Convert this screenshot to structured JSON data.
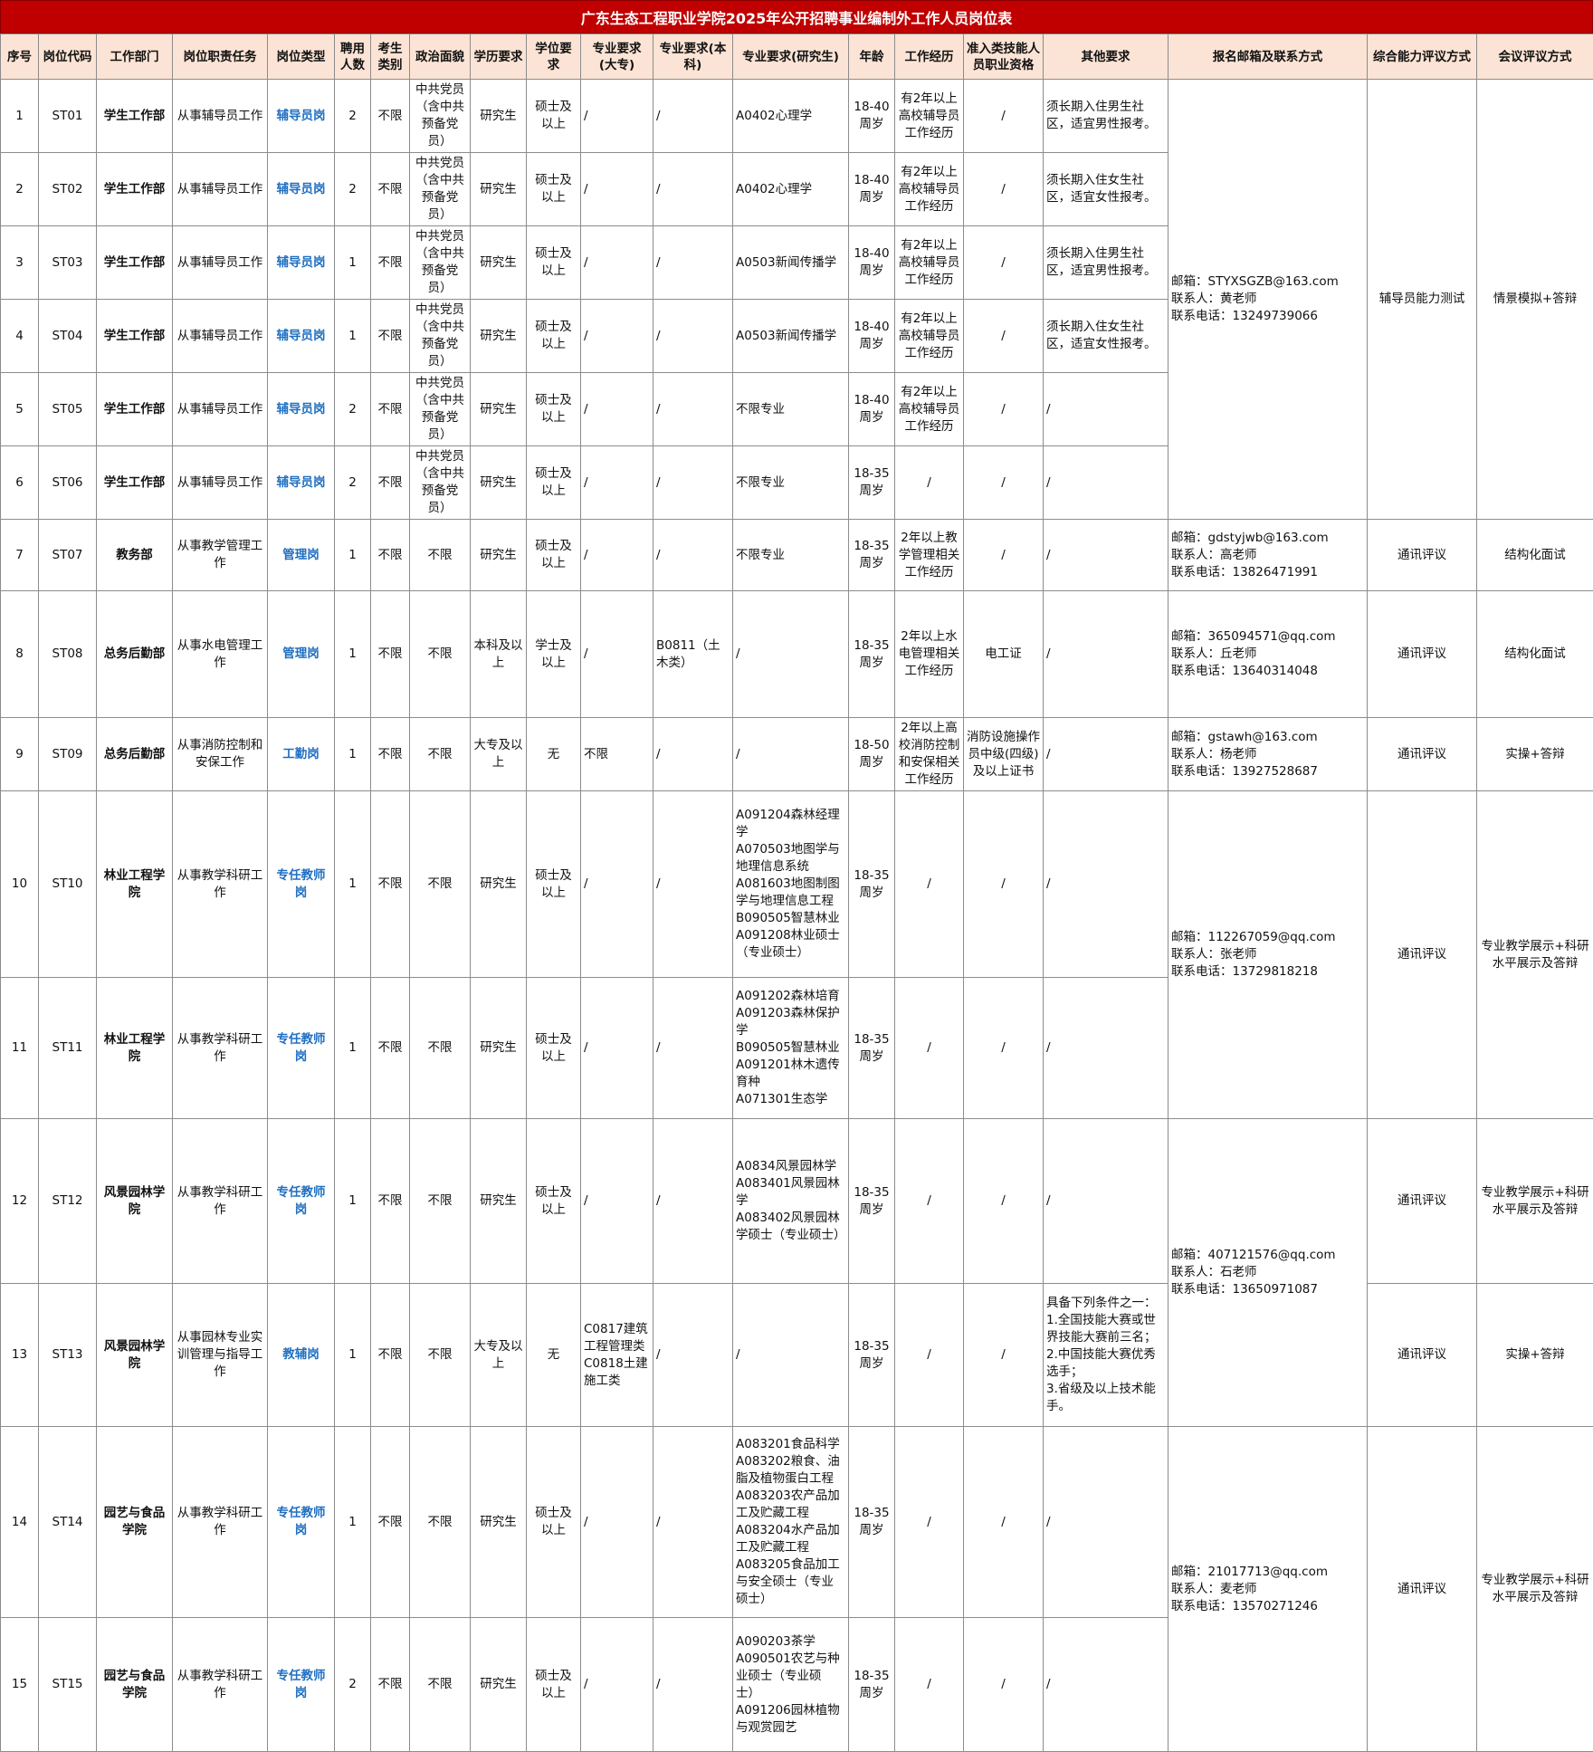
{
  "title": "广东生态工程职业学院2025年公开招聘事业编制外工作人员岗位表",
  "headers": {
    "seq": "序号",
    "code": "岗位代码",
    "dept": "工作部门",
    "duty": "岗位职责任务",
    "type": "岗位类型",
    "count": "聘用人数",
    "category": "考生类别",
    "political": "政治面貌",
    "education": "学历要求",
    "degree": "学位要求",
    "major_college": "专业要求(大专)",
    "major_bachelor": "专业要求(本科)",
    "major_grad": "专业要求(研究生)",
    "age": "年龄",
    "experience": "工作经历",
    "qualification": "准入类技能人员职业资格",
    "other": "其他要求",
    "contact": "报名邮箱及联系方式",
    "assess": "综合能力评议方式",
    "meeting": "会议评议方式"
  },
  "rows": [
    {
      "seq": "1",
      "code": "ST01",
      "dept": "学生工作部",
      "duty": "从事辅导员工作",
      "type": "辅导员岗",
      "count": "2",
      "category": "不限",
      "political": "中共党员（含中共预备党员）",
      "education": "研究生",
      "degree": "硕士及以上",
      "major_college": "/",
      "major_bachelor": "/",
      "major_grad": "A0402心理学",
      "age": "18-40周岁",
      "experience": "有2年以上高校辅导员工作经历",
      "qualification": "/",
      "other": "须长期入住男生社区，适宜男性报考。"
    },
    {
      "seq": "2",
      "code": "ST02",
      "dept": "学生工作部",
      "duty": "从事辅导员工作",
      "type": "辅导员岗",
      "count": "2",
      "category": "不限",
      "political": "中共党员（含中共预备党员）",
      "education": "研究生",
      "degree": "硕士及以上",
      "major_college": "/",
      "major_bachelor": "/",
      "major_grad": "A0402心理学",
      "age": "18-40周岁",
      "experience": "有2年以上高校辅导员工作经历",
      "qualification": "/",
      "other": "须长期入住女生社区，适宜女性报考。"
    },
    {
      "seq": "3",
      "code": "ST03",
      "dept": "学生工作部",
      "duty": "从事辅导员工作",
      "type": "辅导员岗",
      "count": "1",
      "category": "不限",
      "political": "中共党员（含中共预备党员）",
      "education": "研究生",
      "degree": "硕士及以上",
      "major_college": "/",
      "major_bachelor": "/",
      "major_grad": "A0503新闻传播学",
      "age": "18-40周岁",
      "experience": "有2年以上高校辅导员工作经历",
      "qualification": "/",
      "other": "须长期入住男生社区，适宜男性报考。"
    },
    {
      "seq": "4",
      "code": "ST04",
      "dept": "学生工作部",
      "duty": "从事辅导员工作",
      "type": "辅导员岗",
      "count": "1",
      "category": "不限",
      "political": "中共党员（含中共预备党员）",
      "education": "研究生",
      "degree": "硕士及以上",
      "major_college": "/",
      "major_bachelor": "/",
      "major_grad": "A0503新闻传播学",
      "age": "18-40周岁",
      "experience": "有2年以上高校辅导员工作经历",
      "qualification": "/",
      "other": "须长期入住女生社区，适宜女性报考。"
    },
    {
      "seq": "5",
      "code": "ST05",
      "dept": "学生工作部",
      "duty": "从事辅导员工作",
      "type": "辅导员岗",
      "count": "2",
      "category": "不限",
      "political": "中共党员（含中共预备党员）",
      "education": "研究生",
      "degree": "硕士及以上",
      "major_college": "/",
      "major_bachelor": "/",
      "major_grad": "不限专业",
      "age": "18-40周岁",
      "experience": "有2年以上高校辅导员工作经历",
      "qualification": "/",
      "other": "/"
    },
    {
      "seq": "6",
      "code": "ST06",
      "dept": "学生工作部",
      "duty": "从事辅导员工作",
      "type": "辅导员岗",
      "count": "2",
      "category": "不限",
      "political": "中共党员（含中共预备党员）",
      "education": "研究生",
      "degree": "硕士及以上",
      "major_college": "/",
      "major_bachelor": "/",
      "major_grad": "不限专业",
      "age": "18-35周岁",
      "experience": "/",
      "qualification": "/",
      "other": "/"
    },
    {
      "seq": "7",
      "code": "ST07",
      "dept": "教务部",
      "duty": "从事教学管理工作",
      "type": "管理岗",
      "count": "1",
      "category": "不限",
      "political": "不限",
      "education": "研究生",
      "degree": "硕士及以上",
      "major_college": "/",
      "major_bachelor": "/",
      "major_grad": "不限专业",
      "age": "18-35周岁",
      "experience": "2年以上教学管理相关工作经历",
      "qualification": "/",
      "other": "/"
    },
    {
      "seq": "8",
      "code": "ST08",
      "dept": "总务后勤部",
      "duty": "从事水电管理工作",
      "type": "管理岗",
      "count": "1",
      "category": "不限",
      "political": "不限",
      "education": "本科及以上",
      "degree": "学士及以上",
      "major_college": "/",
      "major_bachelor": "B0811（土木类）",
      "major_grad": "/",
      "age": "18-35周岁",
      "experience": "2年以上水电管理相关工作经历",
      "qualification": "电工证",
      "other": "/"
    },
    {
      "seq": "9",
      "code": "ST09",
      "dept": "总务后勤部",
      "duty": "从事消防控制和安保工作",
      "type": "工勤岗",
      "count": "1",
      "category": "不限",
      "political": "不限",
      "education": "大专及以上",
      "degree": "无",
      "major_college": "不限",
      "major_bachelor": "/",
      "major_grad": "/",
      "age": "18-50周岁",
      "experience": "2年以上高校消防控制和安保相关工作经历",
      "qualification": "消防设施操作员中级(四级)及以上证书",
      "other": "/"
    },
    {
      "seq": "10",
      "code": "ST10",
      "dept": "林业工程学院",
      "duty": "从事教学科研工作",
      "type": "专任教师岗",
      "count": "1",
      "category": "不限",
      "political": "不限",
      "education": "研究生",
      "degree": "硕士及以上",
      "major_college": "/",
      "major_bachelor": "/",
      "major_grad": "A091204森林经理学\nA070503地图学与地理信息系统\nA081603地图制图学与地理信息工程\nB090505智慧林业\nA091208林业硕士（专业硕士）",
      "age": "18-35周岁",
      "experience": "/",
      "qualification": "/",
      "other": "/"
    },
    {
      "seq": "11",
      "code": "ST11",
      "dept": "林业工程学院",
      "duty": "从事教学科研工作",
      "type": "专任教师岗",
      "count": "1",
      "category": "不限",
      "political": "不限",
      "education": "研究生",
      "degree": "硕士及以上",
      "major_college": "/",
      "major_bachelor": "/",
      "major_grad": "A091202森林培育\nA091203森林保护学\nB090505智慧林业\nA091201林木遗传育种\nA071301生态学",
      "age": "18-35周岁",
      "experience": "/",
      "qualification": "/",
      "other": "/"
    },
    {
      "seq": "12",
      "code": "ST12",
      "dept": "风景园林学院",
      "duty": "从事教学科研工作",
      "type": "专任教师岗",
      "count": "1",
      "category": "不限",
      "political": "不限",
      "education": "研究生",
      "degree": "硕士及以上",
      "major_college": "/",
      "major_bachelor": "/",
      "major_grad": "A0834风景园林学\nA083401风景园林学\nA083402风景园林学硕士（专业硕士）",
      "age": "18-35周岁",
      "experience": "/",
      "qualification": "/",
      "other": "/"
    },
    {
      "seq": "13",
      "code": "ST13",
      "dept": "风景园林学院",
      "duty": "从事园林专业实训管理与指导工作",
      "type": "教辅岗",
      "count": "1",
      "category": "不限",
      "political": "不限",
      "education": "大专及以上",
      "degree": "无",
      "major_college": "C0817建筑工程管理类\nC0818土建施工类",
      "major_bachelor": "/",
      "major_grad": "/",
      "age": "18-35周岁",
      "experience": "/",
      "qualification": "/",
      "other": "具备下列条件之一：\n1.全国技能大赛或世界技能大赛前三名；\n2.中国技能大赛优秀选手；\n3.省级及以上技术能手。"
    },
    {
      "seq": "14",
      "code": "ST14",
      "dept": "园艺与食品学院",
      "duty": "从事教学科研工作",
      "type": "专任教师岗",
      "count": "1",
      "category": "不限",
      "political": "不限",
      "education": "研究生",
      "degree": "硕士及以上",
      "major_college": "/",
      "major_bachelor": "/",
      "major_grad": "A083201食品科学\nA083202粮食、油脂及植物蛋白工程\nA083203农产品加工及贮藏工程\nA083204水产品加工及贮藏工程\nA083205食品加工与安全硕士（专业硕士）",
      "age": "18-35周岁",
      "experience": "/",
      "qualification": "/",
      "other": "/"
    },
    {
      "seq": "15",
      "code": "ST15",
      "dept": "园艺与食品学院",
      "duty": "从事教学科研工作",
      "type": "专任教师岗",
      "count": "2",
      "category": "不限",
      "political": "不限",
      "education": "研究生",
      "degree": "硕士及以上",
      "major_college": "/",
      "major_bachelor": "/",
      "major_grad": "A090203茶学\nA090501农艺与种业硕士（专业硕士）\nA091206园林植物与观赏园艺",
      "age": "18-35周岁",
      "experience": "/",
      "qualification": "/",
      "other": "/"
    }
  ],
  "groups": [
    {
      "contact": "邮箱：STYXSGZB@163.com\n联系人：黄老师\n联系电话：13249739066",
      "assess": "辅导员能力测试",
      "meeting": "情景模拟+答辩"
    },
    {
      "contact": "邮箱：gdstyjwb@163.com\n联系人：高老师\n联系电话：13826471991",
      "assess": "通讯评议",
      "meeting": "结构化面试"
    },
    {
      "contact": "邮箱：365094571@qq.com\n联系人：丘老师\n联系电话：13640314048",
      "assess": "通讯评议",
      "meeting": "结构化面试"
    },
    {
      "contact": "邮箱：gstawh@163.com\n联系人：杨老师\n联系电话：13927528687",
      "assess": "通讯评议",
      "meeting": "实操+答辩"
    },
    {
      "contact": "邮箱：112267059@qq.com\n联系人：张老师\n联系电话：13729818218",
      "assess": "通讯评议",
      "meeting": "专业教学展示+科研水平展示及答辩"
    },
    {
      "contact": "邮箱：407121576@qq.com\n联系人：石老师\n联系电话：13650971087",
      "assess_a": "通讯评议",
      "meeting_a": "专业教学展示+科研水平展示及答辩",
      "assess_b": "通讯评议",
      "meeting_b": "实操+答辩"
    },
    {
      "contact": "邮箱：21017713@qq.com\n联系人：麦老师\n联系电话：13570271246",
      "assess": "通讯评议",
      "meeting": "专业教学展示+科研水平展示及答辩"
    }
  ]
}
